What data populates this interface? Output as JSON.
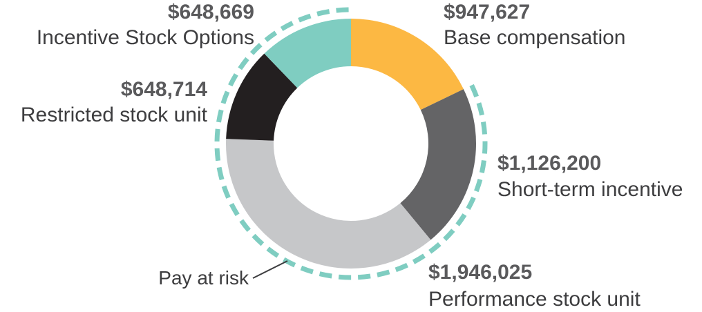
{
  "chart_data": {
    "type": "donut",
    "title": "",
    "slices": [
      {
        "name": "Base compensation",
        "value": 947627,
        "value_label": "$947,627",
        "color": "#fcb843"
      },
      {
        "name": "Short-term incentive",
        "value": 1126200,
        "value_label": "$1,126,200",
        "color": "#646466"
      },
      {
        "name": "Performance stock unit",
        "value": 1946025,
        "value_label": "$1,946,025",
        "color": "#c6c7c9"
      },
      {
        "name": "Restricted stock unit",
        "value": 648714,
        "value_label": "$648,714",
        "color": "#231f20"
      },
      {
        "name": "Incentive Stock Options",
        "value": 648669,
        "value_label": "$648,669",
        "color": "#7fcdc1"
      }
    ],
    "annotation": {
      "text": "Pay at risk",
      "covers": [
        "Short-term incentive",
        "Performance stock unit",
        "Restricted stock unit",
        "Incentive Stock Options"
      ],
      "color": "#7fcdc1"
    }
  }
}
